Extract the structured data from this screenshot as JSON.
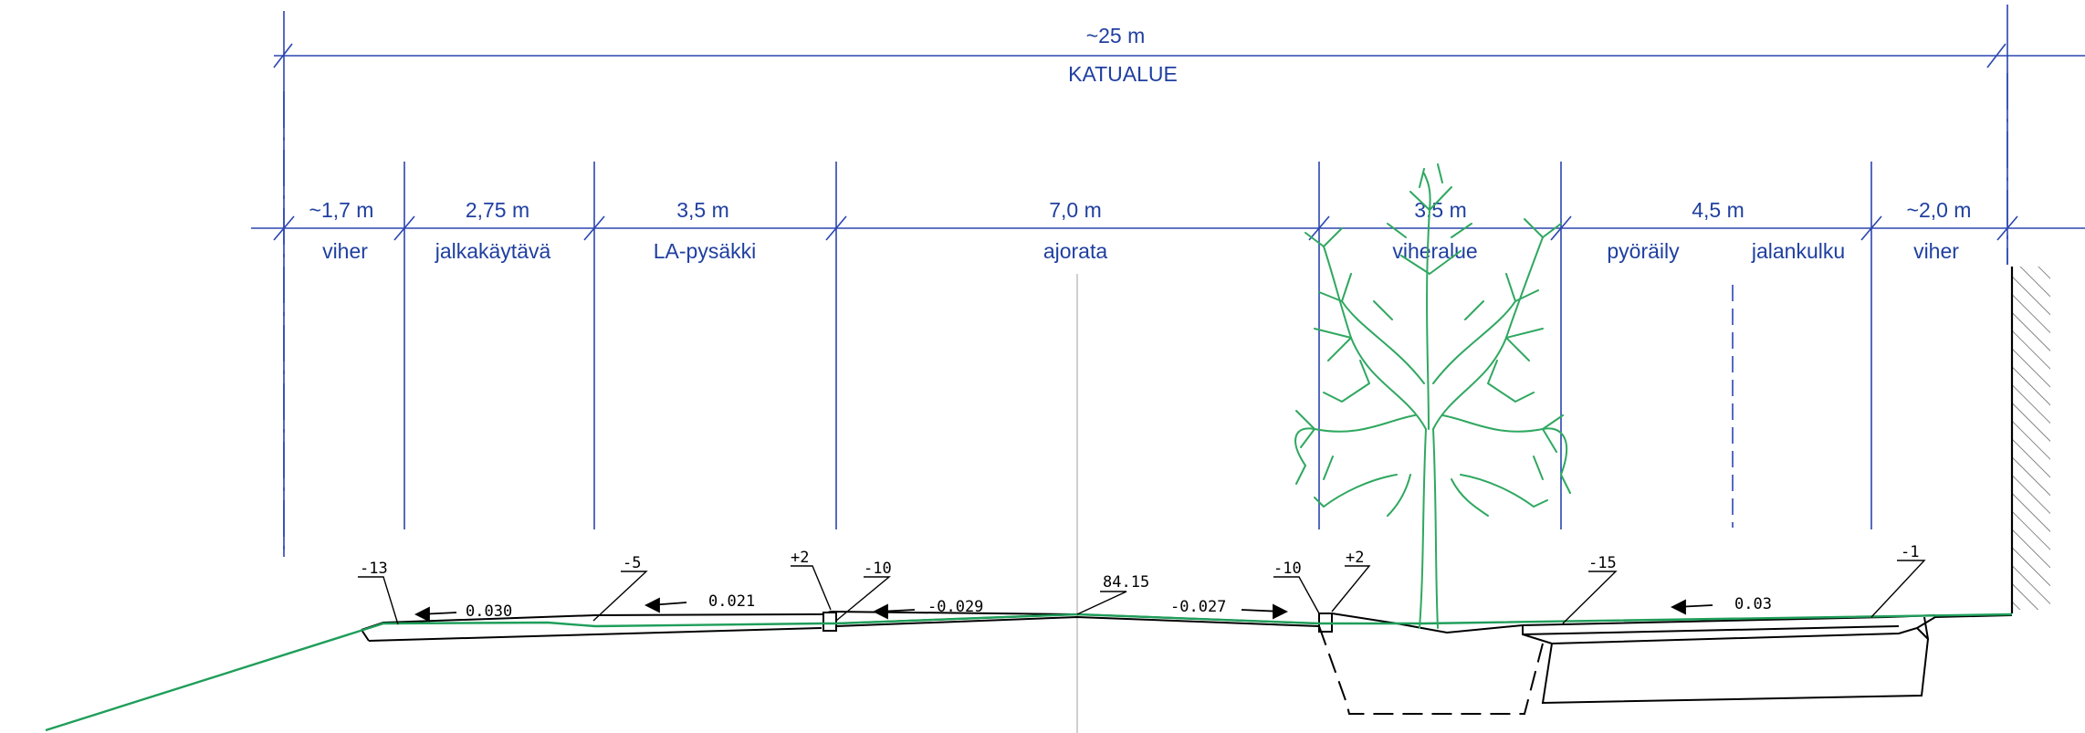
{
  "colors": {
    "dimension_line": "#2b45b0",
    "dimension_text": "#1f3fa0",
    "ground_line": "#1f9e5a",
    "tree": "#2fa860",
    "structure": "#000000"
  },
  "overall": {
    "width": "~25 m",
    "label": "KATUALUE"
  },
  "sections": [
    {
      "width": "~1,7 m",
      "label": "viher"
    },
    {
      "width": "2,75 m",
      "label": "jalkakäytävä"
    },
    {
      "width": "3,5 m",
      "label": "LA-pysäkki"
    },
    {
      "width": "7,0 m",
      "label": "ajorata"
    },
    {
      "width": "3,5 m",
      "label": "viheralue"
    },
    {
      "width": "4,5 m",
      "label": "pyöräily",
      "label2": "jalankulku"
    },
    {
      "width": "~2,0 m",
      "label": "viher"
    }
  ],
  "height_markers": [
    "-13",
    "-5",
    "+2",
    "-10",
    "84.15",
    "-10",
    "+2",
    "-15",
    "-1"
  ],
  "slopes": [
    "0.030",
    "0.021",
    "-0.029",
    "-0.027",
    "0.03"
  ],
  "icons": {
    "tree": "tree-icon",
    "wall": "hatched-wall-icon"
  }
}
